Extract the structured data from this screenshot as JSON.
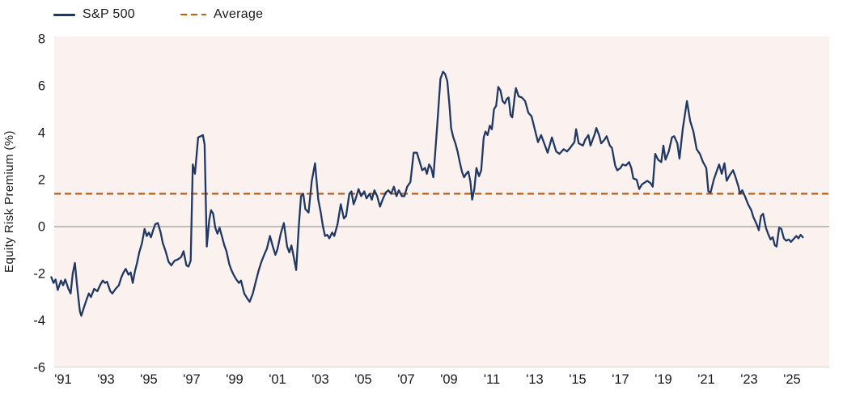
{
  "legend": {
    "items": [
      {
        "label": "S&P 500",
        "style": "solid"
      },
      {
        "label": "Average",
        "style": "dashed"
      }
    ]
  },
  "y_axis": {
    "title": "Equity Risk Premium (%)",
    "tick_labels": [
      "8",
      "6",
      "4",
      "2",
      "0",
      "-2",
      "-4",
      "-6"
    ],
    "tick_values": [
      8,
      6,
      4,
      2,
      0,
      -2,
      -4,
      -6
    ]
  },
  "x_axis": {
    "tick_labels": [
      "'91",
      "'93",
      "'95",
      "'97",
      "'99",
      "'01",
      "'03",
      "'05",
      "'07",
      "'09",
      "'11",
      "'13",
      "'15",
      "'17",
      "'19",
      "'21",
      "'23",
      "'25"
    ],
    "tick_values": [
      1991,
      1993,
      1995,
      1997,
      1999,
      2001,
      2003,
      2005,
      2007,
      2009,
      2011,
      2013,
      2015,
      2017,
      2019,
      2021,
      2023,
      2025
    ]
  },
  "colors": {
    "series_line": "#1f3864",
    "average_line": "#c55a11",
    "zero_line": "#9b9b9b",
    "plot_background": "#fbf2ef",
    "plot_bottom_border": "#ddd4d1",
    "axis_text": "#1a1a1a"
  },
  "chart_data": {
    "type": "line",
    "title": "",
    "xlabel": "",
    "ylabel": "Equity Risk Premium (%)",
    "ylim": [
      -6,
      8
    ],
    "xlim": [
      1990.4,
      2026.7
    ],
    "grid": "zero-line-only",
    "legend_position": "top-left",
    "average_value": 1.4,
    "series": [
      {
        "name": "S&P 500",
        "style": "solid",
        "color": "#1f3864",
        "points": [
          [
            1990.45,
            -2.15
          ],
          [
            1990.55,
            -2.4
          ],
          [
            1990.65,
            -2.25
          ],
          [
            1990.75,
            -2.7
          ],
          [
            1990.9,
            -2.3
          ],
          [
            1991.0,
            -2.5
          ],
          [
            1991.1,
            -2.25
          ],
          [
            1991.25,
            -2.65
          ],
          [
            1991.35,
            -2.85
          ],
          [
            1991.45,
            -2.0
          ],
          [
            1991.55,
            -1.55
          ],
          [
            1991.65,
            -2.5
          ],
          [
            1991.72,
            -3.1
          ],
          [
            1991.78,
            -3.6
          ],
          [
            1991.85,
            -3.8
          ],
          [
            1991.95,
            -3.5
          ],
          [
            1992.1,
            -3.1
          ],
          [
            1992.2,
            -2.85
          ],
          [
            1992.3,
            -3.0
          ],
          [
            1992.45,
            -2.65
          ],
          [
            1992.6,
            -2.75
          ],
          [
            1992.72,
            -2.5
          ],
          [
            1992.85,
            -2.3
          ],
          [
            1992.95,
            -2.4
          ],
          [
            1993.05,
            -2.35
          ],
          [
            1993.2,
            -2.75
          ],
          [
            1993.3,
            -2.85
          ],
          [
            1993.45,
            -2.65
          ],
          [
            1993.6,
            -2.5
          ],
          [
            1993.72,
            -2.15
          ],
          [
            1993.82,
            -1.95
          ],
          [
            1993.92,
            -1.8
          ],
          [
            1994.05,
            -2.05
          ],
          [
            1994.15,
            -1.95
          ],
          [
            1994.25,
            -2.4
          ],
          [
            1994.35,
            -1.9
          ],
          [
            1994.45,
            -1.55
          ],
          [
            1994.55,
            -1.1
          ],
          [
            1994.68,
            -0.7
          ],
          [
            1994.8,
            -0.1
          ],
          [
            1994.9,
            -0.4
          ],
          [
            1995.0,
            -0.25
          ],
          [
            1995.1,
            -0.45
          ],
          [
            1995.2,
            -0.15
          ],
          [
            1995.3,
            0.1
          ],
          [
            1995.42,
            0.15
          ],
          [
            1995.55,
            -0.25
          ],
          [
            1995.65,
            -0.7
          ],
          [
            1995.78,
            -1.05
          ],
          [
            1995.92,
            -1.5
          ],
          [
            1996.05,
            -1.65
          ],
          [
            1996.2,
            -1.45
          ],
          [
            1996.35,
            -1.4
          ],
          [
            1996.5,
            -1.3
          ],
          [
            1996.62,
            -1.05
          ],
          [
            1996.75,
            -1.65
          ],
          [
            1996.85,
            -1.7
          ],
          [
            1996.95,
            -1.45
          ],
          [
            1997.05,
            2.65
          ],
          [
            1997.15,
            2.25
          ],
          [
            1997.3,
            3.8
          ],
          [
            1997.42,
            3.85
          ],
          [
            1997.52,
            3.9
          ],
          [
            1997.6,
            3.5
          ],
          [
            1997.7,
            -0.85
          ],
          [
            1997.82,
            0.3
          ],
          [
            1997.9,
            0.7
          ],
          [
            1998.0,
            0.55
          ],
          [
            1998.1,
            -0.05
          ],
          [
            1998.2,
            -0.3
          ],
          [
            1998.3,
            -0.05
          ],
          [
            1998.42,
            -0.45
          ],
          [
            1998.52,
            -0.8
          ],
          [
            1998.62,
            -1.05
          ],
          [
            1998.75,
            -1.6
          ],
          [
            1998.85,
            -1.85
          ],
          [
            1998.95,
            -2.05
          ],
          [
            1999.08,
            -2.25
          ],
          [
            1999.2,
            -2.4
          ],
          [
            1999.3,
            -2.3
          ],
          [
            1999.45,
            -2.85
          ],
          [
            1999.58,
            -3.05
          ],
          [
            1999.7,
            -3.2
          ],
          [
            1999.85,
            -2.85
          ],
          [
            2000.0,
            -2.3
          ],
          [
            2000.13,
            -1.85
          ],
          [
            2000.25,
            -1.5
          ],
          [
            2000.4,
            -1.15
          ],
          [
            2000.5,
            -0.95
          ],
          [
            2000.65,
            -0.4
          ],
          [
            2000.78,
            -0.85
          ],
          [
            2000.9,
            -1.2
          ],
          [
            2001.0,
            -0.95
          ],
          [
            2001.15,
            -0.3
          ],
          [
            2001.3,
            0.15
          ],
          [
            2001.45,
            -0.85
          ],
          [
            2001.55,
            -1.1
          ],
          [
            2001.65,
            -0.8
          ],
          [
            2001.76,
            -1.3
          ],
          [
            2001.87,
            -1.85
          ],
          [
            2002.0,
            0.1
          ],
          [
            2002.1,
            1.3
          ],
          [
            2002.2,
            1.4
          ],
          [
            2002.3,
            0.75
          ],
          [
            2002.45,
            0.6
          ],
          [
            2002.6,
            1.95
          ],
          [
            2002.75,
            2.7
          ],
          [
            2002.9,
            1.15
          ],
          [
            2003.02,
            0.6
          ],
          [
            2003.12,
            0.0
          ],
          [
            2003.22,
            -0.4
          ],
          [
            2003.32,
            -0.35
          ],
          [
            2003.42,
            -0.5
          ],
          [
            2003.55,
            -0.25
          ],
          [
            2003.65,
            -0.4
          ],
          [
            2003.8,
            0.1
          ],
          [
            2003.95,
            0.95
          ],
          [
            2004.1,
            0.35
          ],
          [
            2004.2,
            0.45
          ],
          [
            2004.35,
            1.4
          ],
          [
            2004.45,
            1.5
          ],
          [
            2004.55,
            0.95
          ],
          [
            2004.65,
            1.2
          ],
          [
            2004.78,
            1.6
          ],
          [
            2004.9,
            1.3
          ],
          [
            2005.05,
            1.5
          ],
          [
            2005.15,
            1.2
          ],
          [
            2005.3,
            1.4
          ],
          [
            2005.4,
            1.15
          ],
          [
            2005.52,
            1.55
          ],
          [
            2005.65,
            1.3
          ],
          [
            2005.78,
            0.85
          ],
          [
            2005.9,
            1.15
          ],
          [
            2006.05,
            1.45
          ],
          [
            2006.17,
            1.55
          ],
          [
            2006.3,
            1.4
          ],
          [
            2006.43,
            1.7
          ],
          [
            2006.55,
            1.3
          ],
          [
            2006.66,
            1.55
          ],
          [
            2006.8,
            1.3
          ],
          [
            2006.92,
            1.3
          ],
          [
            2007.05,
            1.7
          ],
          [
            2007.2,
            1.9
          ],
          [
            2007.35,
            3.15
          ],
          [
            2007.5,
            3.15
          ],
          [
            2007.62,
            2.8
          ],
          [
            2007.75,
            2.4
          ],
          [
            2007.88,
            2.5
          ],
          [
            2007.97,
            2.25
          ],
          [
            2008.07,
            2.65
          ],
          [
            2008.17,
            2.5
          ],
          [
            2008.27,
            2.1
          ],
          [
            2008.45,
            4.3
          ],
          [
            2008.6,
            6.3
          ],
          [
            2008.72,
            6.6
          ],
          [
            2008.82,
            6.5
          ],
          [
            2008.92,
            6.2
          ],
          [
            2009.02,
            5.2
          ],
          [
            2009.1,
            4.2
          ],
          [
            2009.2,
            3.8
          ],
          [
            2009.3,
            3.55
          ],
          [
            2009.4,
            3.2
          ],
          [
            2009.5,
            2.75
          ],
          [
            2009.6,
            2.35
          ],
          [
            2009.7,
            2.1
          ],
          [
            2009.8,
            2.25
          ],
          [
            2009.9,
            2.35
          ],
          [
            2010.0,
            1.9
          ],
          [
            2010.08,
            1.15
          ],
          [
            2010.18,
            1.6
          ],
          [
            2010.28,
            2.5
          ],
          [
            2010.4,
            2.15
          ],
          [
            2010.5,
            2.4
          ],
          [
            2010.62,
            3.8
          ],
          [
            2010.7,
            4.05
          ],
          [
            2010.8,
            3.9
          ],
          [
            2010.9,
            4.3
          ],
          [
            2011.0,
            4.15
          ],
          [
            2011.1,
            5.0
          ],
          [
            2011.2,
            5.15
          ],
          [
            2011.3,
            5.95
          ],
          [
            2011.4,
            5.8
          ],
          [
            2011.5,
            5.35
          ],
          [
            2011.6,
            5.25
          ],
          [
            2011.7,
            5.45
          ],
          [
            2011.78,
            5.5
          ],
          [
            2011.87,
            4.75
          ],
          [
            2011.95,
            4.65
          ],
          [
            2012.07,
            5.6
          ],
          [
            2012.12,
            5.9
          ],
          [
            2012.25,
            5.55
          ],
          [
            2012.4,
            5.5
          ],
          [
            2012.55,
            5.35
          ],
          [
            2012.7,
            4.85
          ],
          [
            2012.85,
            4.7
          ],
          [
            2013.15,
            3.6
          ],
          [
            2013.3,
            3.9
          ],
          [
            2013.6,
            3.15
          ],
          [
            2013.8,
            3.8
          ],
          [
            2014.0,
            3.2
          ],
          [
            2014.15,
            3.1
          ],
          [
            2014.35,
            3.3
          ],
          [
            2014.5,
            3.2
          ],
          [
            2014.65,
            3.35
          ],
          [
            2014.85,
            3.6
          ],
          [
            2014.93,
            4.15
          ],
          [
            2015.05,
            3.55
          ],
          [
            2015.25,
            3.45
          ],
          [
            2015.35,
            3.7
          ],
          [
            2015.5,
            3.9
          ],
          [
            2015.6,
            3.45
          ],
          [
            2015.8,
            3.95
          ],
          [
            2015.87,
            4.2
          ],
          [
            2016.0,
            3.9
          ],
          [
            2016.1,
            3.55
          ],
          [
            2016.25,
            3.7
          ],
          [
            2016.35,
            3.85
          ],
          [
            2016.5,
            3.45
          ],
          [
            2016.6,
            3.35
          ],
          [
            2016.75,
            2.6
          ],
          [
            2016.85,
            2.4
          ],
          [
            2017.0,
            2.5
          ],
          [
            2017.1,
            2.65
          ],
          [
            2017.25,
            2.6
          ],
          [
            2017.4,
            2.75
          ],
          [
            2017.5,
            2.5
          ],
          [
            2017.6,
            2.05
          ],
          [
            2017.75,
            2.0
          ],
          [
            2017.87,
            1.6
          ],
          [
            2018.0,
            1.8
          ],
          [
            2018.25,
            1.95
          ],
          [
            2018.4,
            1.85
          ],
          [
            2018.5,
            1.7
          ],
          [
            2018.62,
            3.1
          ],
          [
            2018.75,
            2.85
          ],
          [
            2018.9,
            2.75
          ],
          [
            2019.0,
            3.45
          ],
          [
            2019.1,
            2.85
          ],
          [
            2019.25,
            3.2
          ],
          [
            2019.4,
            3.8
          ],
          [
            2019.5,
            3.85
          ],
          [
            2019.65,
            3.55
          ],
          [
            2019.75,
            2.9
          ],
          [
            2019.9,
            4.15
          ],
          [
            2020.1,
            5.35
          ],
          [
            2020.25,
            4.5
          ],
          [
            2020.4,
            4.05
          ],
          [
            2020.55,
            3.3
          ],
          [
            2020.7,
            3.1
          ],
          [
            2020.85,
            2.75
          ],
          [
            2021.0,
            2.5
          ],
          [
            2021.1,
            1.5
          ],
          [
            2021.2,
            1.45
          ],
          [
            2021.35,
            2.0
          ],
          [
            2021.5,
            2.4
          ],
          [
            2021.6,
            2.65
          ],
          [
            2021.72,
            2.25
          ],
          [
            2021.85,
            2.7
          ],
          [
            2021.95,
            1.95
          ],
          [
            2022.1,
            2.2
          ],
          [
            2022.25,
            2.4
          ],
          [
            2022.35,
            2.15
          ],
          [
            2022.5,
            1.7
          ],
          [
            2022.57,
            1.4
          ],
          [
            2022.68,
            1.55
          ],
          [
            2022.8,
            1.3
          ],
          [
            2022.95,
            0.95
          ],
          [
            2023.1,
            0.7
          ],
          [
            2023.2,
            0.4
          ],
          [
            2023.35,
            0.1
          ],
          [
            2023.45,
            -0.15
          ],
          [
            2023.55,
            0.45
          ],
          [
            2023.65,
            0.55
          ],
          [
            2023.78,
            -0.05
          ],
          [
            2023.9,
            -0.35
          ],
          [
            2024.0,
            -0.55
          ],
          [
            2024.1,
            -0.45
          ],
          [
            2024.2,
            -0.8
          ],
          [
            2024.28,
            -0.85
          ],
          [
            2024.4,
            -0.05
          ],
          [
            2024.5,
            -0.1
          ],
          [
            2024.62,
            -0.5
          ],
          [
            2024.72,
            -0.6
          ],
          [
            2024.85,
            -0.55
          ],
          [
            2024.95,
            -0.65
          ],
          [
            2025.1,
            -0.5
          ],
          [
            2025.2,
            -0.4
          ],
          [
            2025.3,
            -0.5
          ],
          [
            2025.4,
            -0.35
          ],
          [
            2025.5,
            -0.45
          ]
        ]
      },
      {
        "name": "Average",
        "style": "dashed",
        "color": "#c55a11",
        "value": 1.4
      }
    ]
  }
}
